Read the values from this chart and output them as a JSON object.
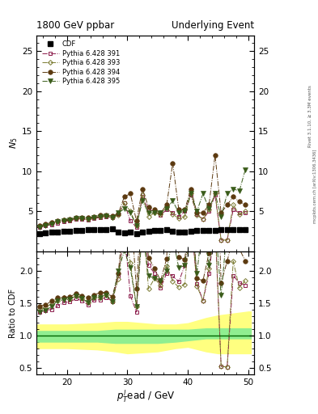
{
  "title_left": "1800 GeV ppbar",
  "title_right": "Underlying Event",
  "ylabel_main": "$N_5$",
  "ylabel_ratio": "Ratio to CDF",
  "xlabel": "$p_T^{l}$ead / GeV",
  "right_label": "Rivet 3.1.10, ≥ 3.3M events",
  "right_label2": "mcplots.cern.ch [arXiv:1306.3436]",
  "xlim": [
    15,
    51
  ],
  "ylim_main": [
    0,
    27
  ],
  "ylim_ratio": [
    0.4,
    2.3
  ],
  "x_arr": [
    15.5,
    16.5,
    17.5,
    18.5,
    19.5,
    20.5,
    21.5,
    22.5,
    23.5,
    24.5,
    25.5,
    26.5,
    27.5,
    28.5,
    29.5,
    30.5,
    31.5,
    32.5,
    33.5,
    34.5,
    35.5,
    36.5,
    37.5,
    38.5,
    39.5,
    40.5,
    41.5,
    42.5,
    43.5,
    44.5,
    45.5,
    46.5,
    47.5,
    48.5,
    49.5
  ],
  "cdf_y": [
    2.2,
    2.3,
    2.35,
    2.4,
    2.45,
    2.5,
    2.55,
    2.6,
    2.65,
    2.65,
    2.7,
    2.7,
    2.75,
    2.4,
    2.3,
    2.35,
    2.2,
    2.4,
    2.5,
    2.55,
    2.6,
    2.65,
    2.5,
    2.35,
    2.4,
    2.5,
    2.55,
    2.6,
    2.55,
    2.6,
    2.65,
    2.7,
    2.7,
    2.65,
    2.7
  ],
  "p391_y": [
    3.0,
    3.2,
    3.3,
    3.5,
    3.7,
    3.8,
    4.0,
    4.0,
    3.9,
    4.1,
    4.2,
    4.3,
    4.2,
    4.6,
    6.0,
    3.8,
    3.0,
    6.8,
    5.2,
    5.0,
    4.5,
    5.2,
    4.8,
    4.3,
    5.0,
    7.0,
    4.6,
    4.0,
    5.0,
    7.0,
    1.4,
    1.4,
    5.2,
    4.8,
    4.8
  ],
  "p393_y": [
    3.1,
    3.3,
    3.5,
    3.7,
    3.9,
    3.9,
    4.1,
    4.1,
    4.0,
    4.2,
    4.3,
    4.4,
    4.2,
    4.5,
    6.0,
    5.0,
    3.2,
    7.0,
    4.3,
    4.8,
    4.6,
    5.5,
    4.6,
    4.1,
    4.3,
    7.2,
    4.5,
    4.0,
    5.2,
    7.2,
    1.4,
    1.4,
    5.8,
    4.6,
    5.0
  ],
  "p394_y": [
    3.2,
    3.4,
    3.6,
    3.8,
    3.9,
    4.0,
    4.2,
    4.2,
    4.2,
    4.3,
    4.5,
    4.5,
    4.4,
    4.7,
    6.8,
    7.2,
    3.8,
    7.8,
    5.5,
    5.2,
    4.8,
    5.8,
    11.0,
    5.2,
    5.2,
    7.8,
    4.8,
    4.8,
    5.8,
    12.0,
    4.8,
    5.8,
    6.8,
    6.2,
    5.8
  ],
  "p395_y": [
    3.0,
    3.2,
    3.4,
    3.7,
    3.8,
    3.9,
    4.1,
    4.1,
    4.0,
    4.2,
    4.3,
    4.4,
    4.2,
    4.8,
    5.3,
    4.8,
    3.2,
    6.3,
    4.8,
    4.8,
    4.8,
    5.3,
    6.3,
    4.8,
    5.0,
    7.2,
    5.0,
    7.2,
    5.3,
    7.2,
    4.3,
    7.2,
    7.8,
    7.5,
    10.2
  ],
  "err_band_x": [
    15.0,
    15.5,
    20.0,
    25.0,
    28.0,
    30.0,
    35.0,
    38.0,
    40.0,
    43.0,
    45.0,
    50.0,
    50.5
  ],
  "green_band_low": [
    0.9,
    0.9,
    0.9,
    0.9,
    0.88,
    0.88,
    0.88,
    0.9,
    0.92,
    0.95,
    0.95,
    0.95,
    0.95
  ],
  "green_band_high": [
    1.08,
    1.08,
    1.08,
    1.08,
    1.1,
    1.1,
    1.1,
    1.1,
    1.1,
    1.12,
    1.12,
    1.12,
    1.12
  ],
  "yellow_band_low": [
    0.8,
    0.8,
    0.8,
    0.78,
    0.75,
    0.72,
    0.75,
    0.8,
    0.82,
    0.75,
    0.72,
    0.72,
    0.72
  ],
  "yellow_band_high": [
    1.18,
    1.18,
    1.18,
    1.2,
    1.22,
    1.22,
    1.18,
    1.18,
    1.2,
    1.28,
    1.32,
    1.38,
    1.38
  ],
  "color_cdf": "#000000",
  "color_391": "#8B1A4A",
  "color_393": "#7A7A30",
  "color_394": "#5C3A10",
  "color_395": "#3A5C1A",
  "color_green_band": "#90EE90",
  "color_yellow_band": "#FFFF80",
  "yticks_main": [
    5,
    10,
    15,
    20,
    25
  ],
  "yticks_ratio": [
    0.5,
    1.0,
    1.5,
    2.0
  ],
  "xticks": [
    20,
    30,
    40,
    50
  ]
}
